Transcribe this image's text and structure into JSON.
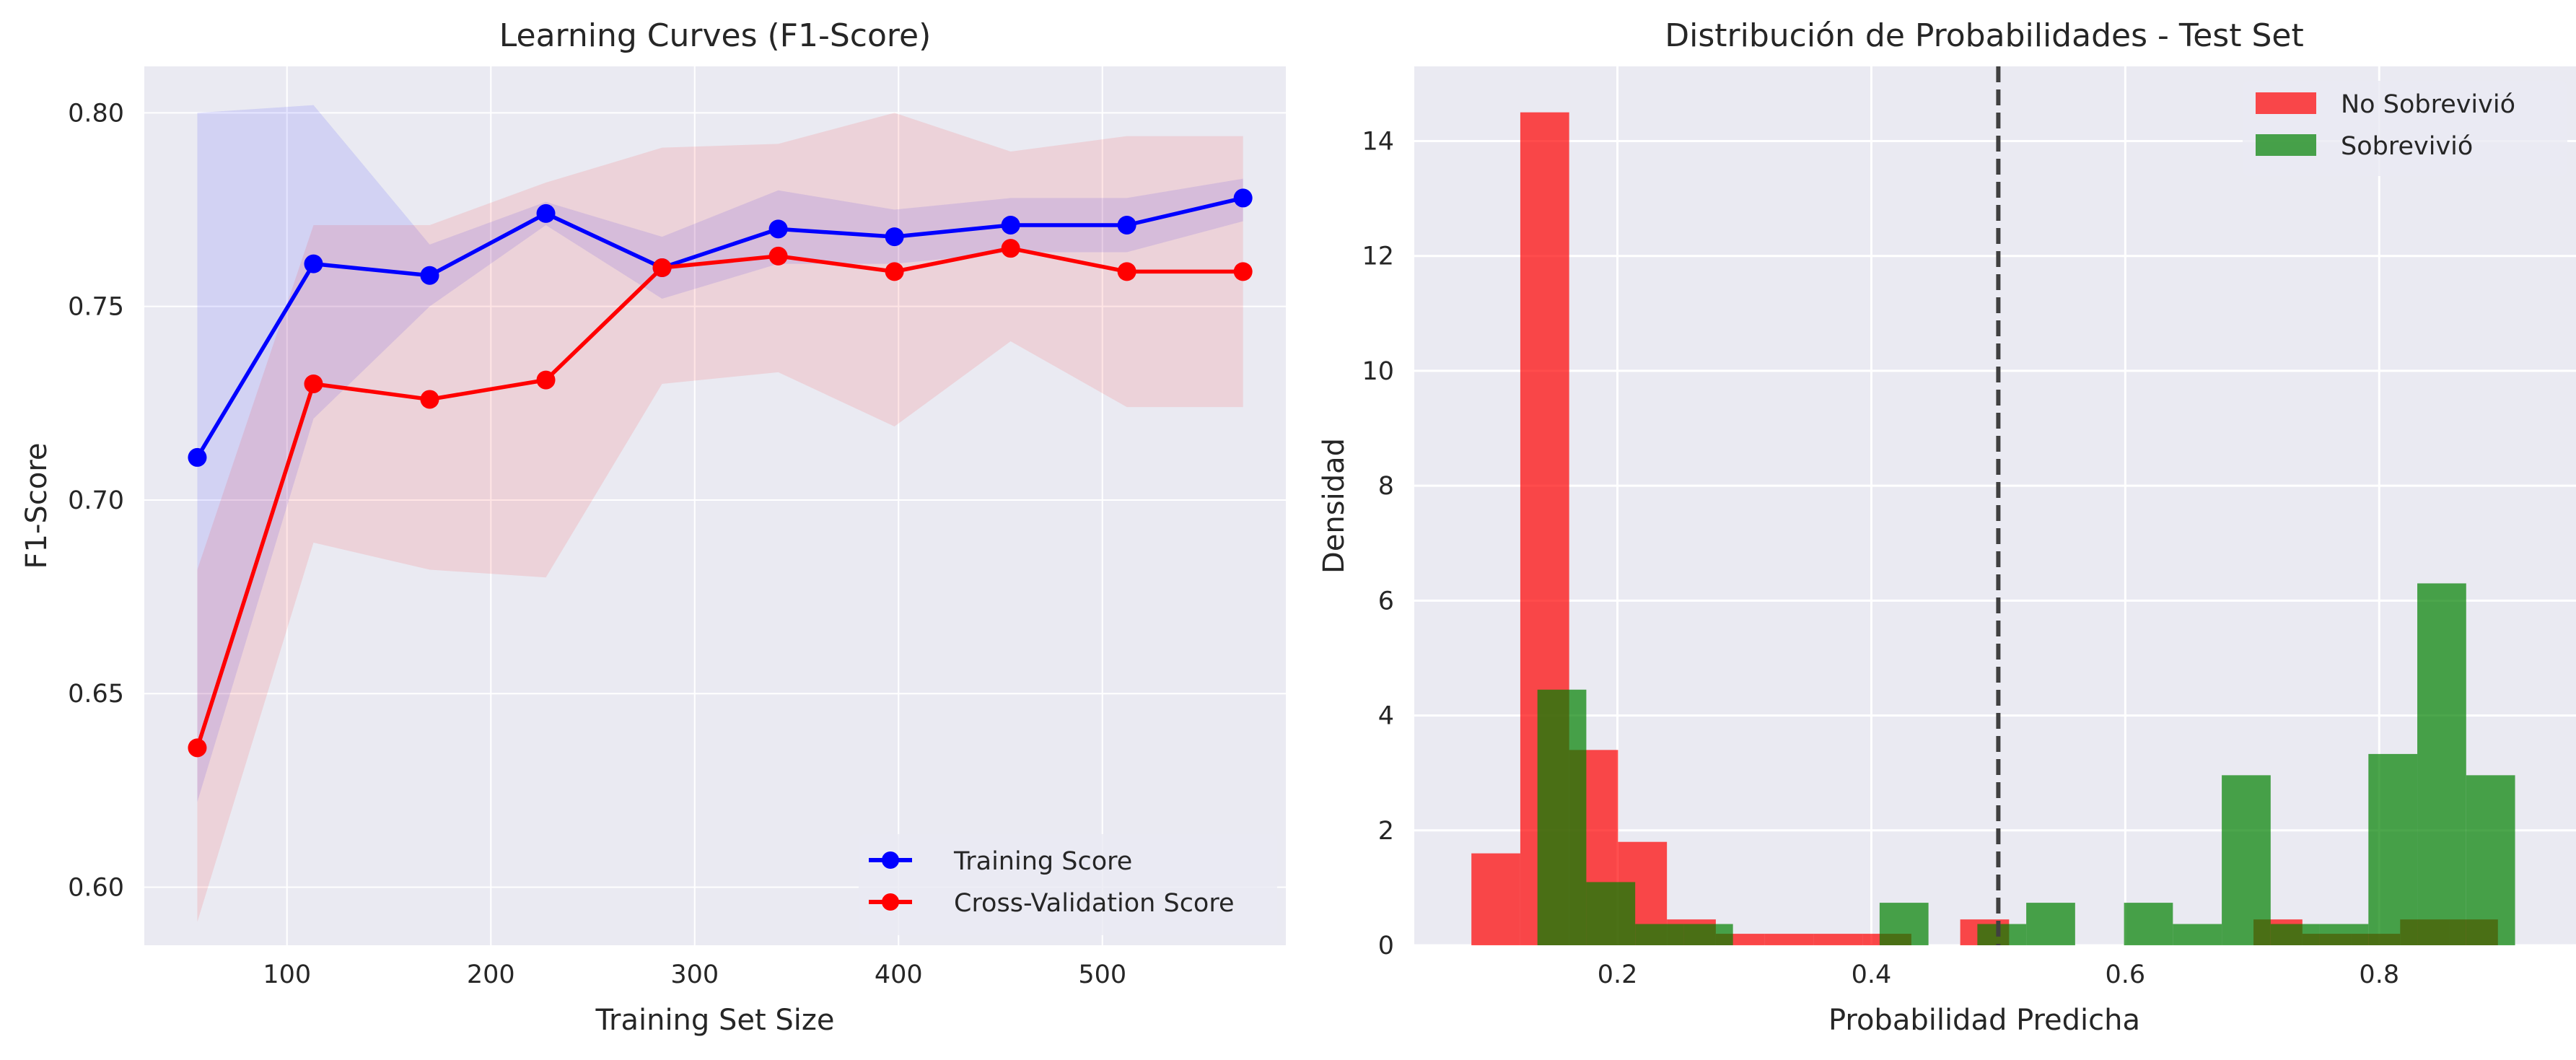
{
  "chart_data": [
    {
      "type": "line",
      "title": "Learning Curves (F1-Score)",
      "xlabel": "Training Set Size",
      "ylabel": "F1-Score",
      "xlim": [
        30,
        590
      ],
      "ylim": [
        0.585,
        0.812
      ],
      "xticks": [
        100,
        200,
        300,
        400,
        500
      ],
      "yticks": [
        0.6,
        0.65,
        0.7,
        0.75,
        0.8
      ],
      "xtick_labels": [
        "100",
        "200",
        "300",
        "400",
        "500"
      ],
      "ytick_labels": [
        "0.60",
        "0.65",
        "0.70",
        "0.75",
        "0.80"
      ],
      "grid": true,
      "legend_position": "lower right",
      "x": [
        56,
        113,
        170,
        227,
        284,
        341,
        398,
        455,
        512,
        569
      ],
      "series": [
        {
          "name": "Training Score",
          "color": "#0000ff",
          "values": [
            0.711,
            0.761,
            0.758,
            0.774,
            0.76,
            0.77,
            0.768,
            0.771,
            0.771,
            0.778
          ],
          "band_lower": [
            0.622,
            0.721,
            0.75,
            0.771,
            0.752,
            0.761,
            0.761,
            0.764,
            0.764,
            0.772
          ],
          "band_upper": [
            0.8,
            0.802,
            0.766,
            0.777,
            0.768,
            0.78,
            0.775,
            0.778,
            0.778,
            0.783
          ]
        },
        {
          "name": "Cross-Validation Score",
          "color": "#ff0000",
          "values": [
            0.636,
            0.73,
            0.726,
            0.731,
            0.76,
            0.763,
            0.759,
            0.765,
            0.759,
            0.759
          ],
          "band_lower": [
            0.591,
            0.689,
            0.682,
            0.68,
            0.73,
            0.733,
            0.719,
            0.741,
            0.724,
            0.724
          ],
          "band_upper": [
            0.682,
            0.771,
            0.771,
            0.782,
            0.791,
            0.792,
            0.8,
            0.79,
            0.794,
            0.794
          ]
        }
      ]
    },
    {
      "type": "histogram",
      "title": "Distribución de Probabilidades - Test Set",
      "xlabel": "Probabilidad Predicha",
      "ylabel": "Densidad",
      "xlim": [
        0.04,
        0.955
      ],
      "ylim": [
        0,
        15.3
      ],
      "xticks": [
        0.2,
        0.4,
        0.6,
        0.8
      ],
      "yticks": [
        0,
        2,
        4,
        6,
        8,
        10,
        12,
        14
      ],
      "xtick_labels": [
        "0.2",
        "0.4",
        "0.6",
        "0.8"
      ],
      "ytick_labels": [
        "0",
        "2",
        "4",
        "6",
        "8",
        "10",
        "12",
        "14"
      ],
      "grid": true,
      "legend_position": "upper right",
      "threshold": 0.5,
      "series": [
        {
          "name": "No Sobrevivió",
          "color": "#ff0000",
          "bins": [
            {
              "x0": 0.085,
              "x1": 0.1235,
              "y": 1.6
            },
            {
              "x0": 0.1235,
              "x1": 0.162,
              "y": 14.5
            },
            {
              "x0": 0.162,
              "x1": 0.2005,
              "y": 3.4
            },
            {
              "x0": 0.2005,
              "x1": 0.239,
              "y": 1.8
            },
            {
              "x0": 0.239,
              "x1": 0.2775,
              "y": 0.45
            },
            {
              "x0": 0.2775,
              "x1": 0.316,
              "y": 0.2
            },
            {
              "x0": 0.316,
              "x1": 0.3545,
              "y": 0.2
            },
            {
              "x0": 0.3545,
              "x1": 0.393,
              "y": 0.2
            },
            {
              "x0": 0.393,
              "x1": 0.4315,
              "y": 0.2
            },
            {
              "x0": 0.4315,
              "x1": 0.47,
              "y": 0
            },
            {
              "x0": 0.47,
              "x1": 0.5085,
              "y": 0.45
            },
            {
              "x0": 0.5085,
              "x1": 0.547,
              "y": 0
            },
            {
              "x0": 0.547,
              "x1": 0.5855,
              "y": 0
            },
            {
              "x0": 0.5855,
              "x1": 0.624,
              "y": 0
            },
            {
              "x0": 0.624,
              "x1": 0.6625,
              "y": 0
            },
            {
              "x0": 0.6625,
              "x1": 0.701,
              "y": 0
            },
            {
              "x0": 0.701,
              "x1": 0.7395,
              "y": 0.45
            },
            {
              "x0": 0.7395,
              "x1": 0.778,
              "y": 0.2
            },
            {
              "x0": 0.778,
              "x1": 0.8165,
              "y": 0.2
            },
            {
              "x0": 0.8165,
              "x1": 0.855,
              "y": 0.45
            },
            {
              "x0": 0.855,
              "x1": 0.8935,
              "y": 0.45
            }
          ]
        },
        {
          "name": "Sobrevivió",
          "color": "#008000",
          "bins": [
            {
              "x0": 0.137,
              "x1": 0.1755,
              "y": 4.45
            },
            {
              "x0": 0.1755,
              "x1": 0.214,
              "y": 1.1
            },
            {
              "x0": 0.214,
              "x1": 0.2525,
              "y": 0.37
            },
            {
              "x0": 0.2525,
              "x1": 0.291,
              "y": 0.37
            },
            {
              "x0": 0.291,
              "x1": 0.3295,
              "y": 0
            },
            {
              "x0": 0.3295,
              "x1": 0.368,
              "y": 0
            },
            {
              "x0": 0.368,
              "x1": 0.4065,
              "y": 0
            },
            {
              "x0": 0.4065,
              "x1": 0.445,
              "y": 0.74
            },
            {
              "x0": 0.445,
              "x1": 0.4835,
              "y": 0
            },
            {
              "x0": 0.4835,
              "x1": 0.522,
              "y": 0.37
            },
            {
              "x0": 0.522,
              "x1": 0.5605,
              "y": 0.74
            },
            {
              "x0": 0.5605,
              "x1": 0.599,
              "y": 0
            },
            {
              "x0": 0.599,
              "x1": 0.6375,
              "y": 0.74
            },
            {
              "x0": 0.6375,
              "x1": 0.676,
              "y": 0.37
            },
            {
              "x0": 0.676,
              "x1": 0.7145,
              "y": 2.96
            },
            {
              "x0": 0.7145,
              "x1": 0.753,
              "y": 0.37
            },
            {
              "x0": 0.753,
              "x1": 0.7915,
              "y": 0.37
            },
            {
              "x0": 0.7915,
              "x1": 0.83,
              "y": 3.33
            },
            {
              "x0": 0.83,
              "x1": 0.8685,
              "y": 6.3
            },
            {
              "x0": 0.8685,
              "x1": 0.907,
              "y": 2.96
            }
          ]
        }
      ]
    }
  ]
}
